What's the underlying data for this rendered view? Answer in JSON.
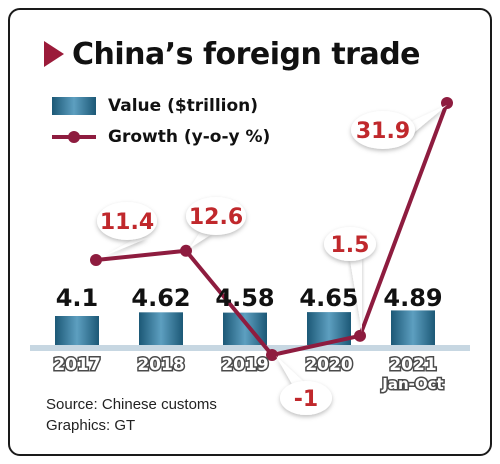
{
  "title": "China’s foreign trade",
  "legend": {
    "value_label": "Value ($trillion)",
    "growth_label": "Growth (y-o-y %)"
  },
  "source": "Source: Chinese customs",
  "credit": "Graphics: GT",
  "colors": {
    "bar": "#2f7396",
    "line": "#8e1c3f",
    "label_red": "#c0282c",
    "baseline": "#c7d7e2"
  },
  "chart_data": {
    "type": "bar+line",
    "title": "China’s foreign trade",
    "categories": [
      "2017",
      "2018",
      "2019",
      "2020",
      "2021"
    ],
    "category_sublabels": [
      "",
      "",
      "",
      "",
      "Jan-Oct"
    ],
    "series": [
      {
        "name": "Value ($trillion)",
        "type": "bar",
        "values": [
          4.1,
          4.62,
          4.58,
          4.65,
          4.89
        ],
        "labels": [
          "4.1",
          "4.62",
          "4.58",
          "4.65",
          "4.89"
        ]
      },
      {
        "name": "Growth (y-o-y %)",
        "type": "line",
        "values": [
          11.4,
          12.6,
          -1,
          1.5,
          31.9
        ],
        "labels": [
          "11.4",
          "12.6",
          "-1",
          "1.5",
          "31.9"
        ]
      }
    ]
  }
}
